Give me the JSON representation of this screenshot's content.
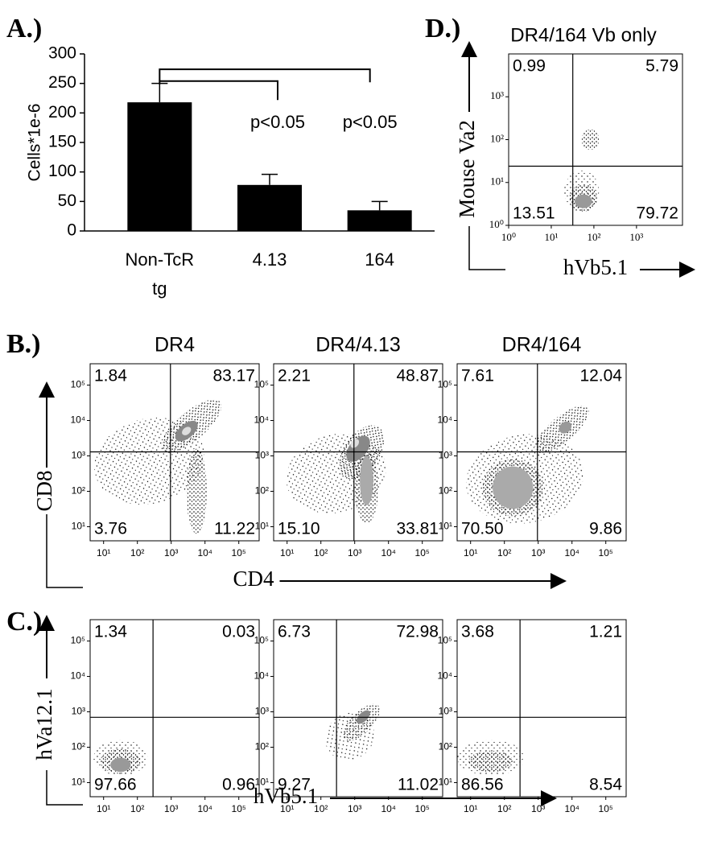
{
  "chart_data": [
    {
      "type": "bar",
      "panel_label": "A.)",
      "ylabel": "Cells*1e-6",
      "categories": [
        "Non-TcR tg",
        "4.13",
        "164"
      ],
      "values": [
        218,
        78,
        35
      ],
      "errors": [
        32,
        18,
        15
      ],
      "color": "#000000",
      "ylim": [
        0,
        300
      ],
      "yticks": [
        0,
        50,
        100,
        150,
        200,
        250,
        300
      ],
      "annotations": [
        "p<0.05",
        "p<0.05"
      ]
    },
    {
      "type": "flow",
      "panel_label": "B.)",
      "title": "DR4",
      "xlabel": "CD4",
      "ylabel": "CD8",
      "log_scale": true,
      "xlim": [
        4,
        400000
      ],
      "ylim": [
        4,
        400000
      ],
      "xticks": [
        {
          "value": 10,
          "label": "10¹"
        },
        {
          "value": 100,
          "label": "10²"
        },
        {
          "value": 1000,
          "label": "10³"
        },
        {
          "value": 10000,
          "label": "10⁴"
        },
        {
          "value": 100000,
          "label": "10⁵"
        }
      ],
      "yticks": [
        {
          "value": 10,
          "label": "10¹"
        },
        {
          "value": 100,
          "label": "10²"
        },
        {
          "value": 1000,
          "label": "10³"
        },
        {
          "value": 10000,
          "label": "10⁴"
        },
        {
          "value": 100000,
          "label": "10⁵"
        }
      ],
      "gates": [
        950,
        1300
      ],
      "values": [
        1.84,
        83.17,
        3.76,
        11.22
      ]
    },
    {
      "type": "flow",
      "title": "DR4/4.13",
      "log_scale": true,
      "xlim": [
        4,
        400000
      ],
      "ylim": [
        4,
        400000
      ],
      "xticks": [
        {
          "value": 10,
          "label": "10¹"
        },
        {
          "value": 100,
          "label": "10²"
        },
        {
          "value": 1000,
          "label": "10³"
        },
        {
          "value": 10000,
          "label": "10⁴"
        },
        {
          "value": 100000,
          "label": "10⁵"
        }
      ],
      "yticks": [
        {
          "value": 10,
          "label": "10¹"
        },
        {
          "value": 100,
          "label": "10²"
        },
        {
          "value": 1000,
          "label": "10³"
        },
        {
          "value": 10000,
          "label": "10⁴"
        },
        {
          "value": 100000,
          "label": "10⁵"
        }
      ],
      "gates": [
        950,
        1300
      ],
      "values": [
        2.21,
        48.87,
        15.1,
        33.81
      ],
      "value_labels": [
        "2.21",
        "48.87",
        "15.10",
        "33.81"
      ]
    },
    {
      "type": "flow",
      "title": "DR4/164",
      "log_scale": true,
      "xlim": [
        4,
        400000
      ],
      "ylim": [
        4,
        400000
      ],
      "xticks": [
        {
          "value": 10,
          "label": "10¹"
        },
        {
          "value": 100,
          "label": "10²"
        },
        {
          "value": 1000,
          "label": "10³"
        },
        {
          "value": 10000,
          "label": "10⁴"
        },
        {
          "value": 100000,
          "label": "10⁵"
        }
      ],
      "yticks": [
        {
          "value": 10,
          "label": "10¹"
        },
        {
          "value": 100,
          "label": "10²"
        },
        {
          "value": 1000,
          "label": "10³"
        },
        {
          "value": 10000,
          "label": "10⁴"
        },
        {
          "value": 100000,
          "label": "10⁵"
        }
      ],
      "gates": [
        950,
        1300
      ],
      "values": [
        7.61,
        12.04,
        70.5,
        9.86
      ],
      "value_labels": [
        "7.61",
        "12.04",
        "70.50",
        "9.86"
      ]
    },
    {
      "type": "flow",
      "panel_label": "C.)",
      "xlabel": "hVb5.1",
      "ylabel": "hVa12.1",
      "log_scale": true,
      "xlim": [
        4,
        400000
      ],
      "ylim": [
        4,
        400000
      ],
      "xticks": [
        {
          "value": 10,
          "label": "10¹"
        },
        {
          "value": 100,
          "label": "10²"
        },
        {
          "value": 1000,
          "label": "10³"
        },
        {
          "value": 10000,
          "label": "10⁴"
        },
        {
          "value": 100000,
          "label": "10⁵"
        }
      ],
      "yticks": [
        {
          "value": 10,
          "label": "10¹"
        },
        {
          "value": 100,
          "label": "10²"
        },
        {
          "value": 1000,
          "label": "10³"
        },
        {
          "value": 10000,
          "label": "10⁴"
        },
        {
          "value": 100000,
          "label": "10⁵"
        }
      ],
      "gates": [
        290,
        700
      ],
      "values": [
        1.34,
        0.03,
        97.66,
        0.96
      ]
    },
    {
      "type": "flow",
      "log_scale": true,
      "xlim": [
        4,
        400000
      ],
      "ylim": [
        4,
        400000
      ],
      "xticks": [
        {
          "value": 10,
          "label": "10¹"
        },
        {
          "value": 100,
          "label": "10²"
        },
        {
          "value": 1000,
          "label": "10³"
        },
        {
          "value": 10000,
          "label": "10⁴"
        },
        {
          "value": 100000,
          "label": "10⁵"
        }
      ],
      "yticks": [
        {
          "value": 10,
          "label": "10¹"
        },
        {
          "value": 100,
          "label": "10²"
        },
        {
          "value": 1000,
          "label": "10³"
        },
        {
          "value": 10000,
          "label": "10⁴"
        },
        {
          "value": 100000,
          "label": "10⁵"
        }
      ],
      "gates": [
        290,
        700
      ],
      "values": [
        6.73,
        72.98,
        9.27,
        11.02
      ]
    },
    {
      "type": "flow",
      "log_scale": true,
      "xlim": [
        4,
        400000
      ],
      "ylim": [
        4,
        400000
      ],
      "xticks": [
        {
          "value": 10,
          "label": "10¹"
        },
        {
          "value": 100,
          "label": "10²"
        },
        {
          "value": 1000,
          "label": "10³"
        },
        {
          "value": 10000,
          "label": "10⁴"
        },
        {
          "value": 100000,
          "label": "10⁵"
        }
      ],
      "yticks": [
        {
          "value": 10,
          "label": "10¹"
        },
        {
          "value": 100,
          "label": "10²"
        },
        {
          "value": 1000,
          "label": "10³"
        },
        {
          "value": 10000,
          "label": "10⁴"
        },
        {
          "value": 100000,
          "label": "10⁵"
        }
      ],
      "gates": [
        290,
        700
      ],
      "values": [
        3.68,
        1.21,
        86.56,
        8.54
      ]
    },
    {
      "type": "flow",
      "panel_label": "D.)",
      "title": "DR4/164 Vb only",
      "xlabel": "hVb5.1",
      "ylabel": "Mouse Va2",
      "log_scale": true,
      "xlim": [
        1,
        12000
      ],
      "ylim": [
        1,
        10000
      ],
      "xticks": [
        {
          "value": 1,
          "label": "10⁰"
        },
        {
          "value": 10,
          "label": "10¹"
        },
        {
          "value": 100,
          "label": "10²"
        },
        {
          "value": 1000,
          "label": "10³"
        }
      ],
      "yticks": [
        {
          "value": 1,
          "label": "10⁰"
        },
        {
          "value": 10,
          "label": "10¹"
        },
        {
          "value": 100,
          "label": "10²"
        },
        {
          "value": 1000,
          "label": "10³"
        }
      ],
      "gates": [
        32,
        24
      ],
      "values": [
        0.99,
        5.79,
        13.51,
        79.72
      ]
    }
  ]
}
